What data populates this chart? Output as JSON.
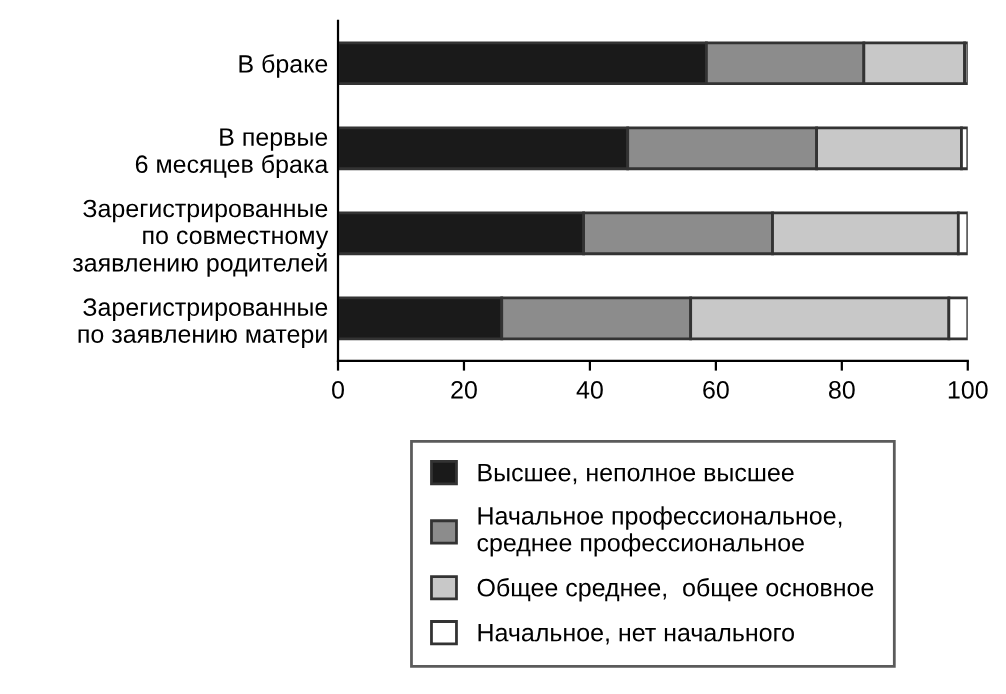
{
  "chart_data": {
    "type": "bar",
    "orientation": "horizontal",
    "stacked": true,
    "categories": [
      "В браке",
      "В первые\n6 месяцев брака",
      "Зарегистрированные\nпо совместному\nзаявлению родителей",
      "Зарегистрированные\nпо заявлению матери"
    ],
    "series": [
      {
        "name": "Высшее, неполное высшее",
        "color": "#1a1a1a",
        "values": [
          58.5,
          46,
          39,
          26
        ]
      },
      {
        "name": "Начальное профессиональное,\nсреднее профессиональное",
        "color": "#8c8c8c",
        "values": [
          25,
          30,
          30,
          30
        ]
      },
      {
        "name": "Общее среднее,  общее основное",
        "color": "#c8c8c8",
        "values": [
          16,
          23,
          29.5,
          41
        ]
      },
      {
        "name": "Начальное, нет начального",
        "color": "#ffffff",
        "values": [
          0.5,
          1,
          1.5,
          3
        ]
      }
    ],
    "xlim": [
      0,
      100
    ],
    "xticks": [
      0,
      20,
      40,
      60,
      80,
      100
    ],
    "grid": false,
    "legend": "bottom"
  }
}
